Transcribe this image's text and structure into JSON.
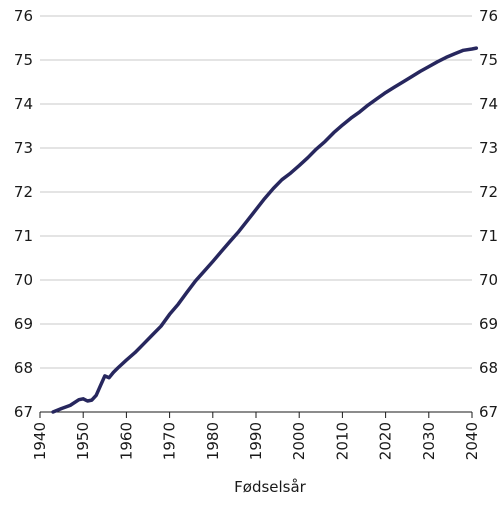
{
  "chart_data": {
    "type": "line",
    "title": "",
    "xlabel": "Fødselsår",
    "ylabel": "",
    "xlim": [
      1940,
      2040
    ],
    "ylim": [
      67,
      76
    ],
    "x_ticks": [
      "1940",
      "1950",
      "1960",
      "1970",
      "1980",
      "1990",
      "2000",
      "2010",
      "2020",
      "2030",
      "2040"
    ],
    "y_ticks": [
      "67",
      "68",
      "69",
      "70",
      "71",
      "72",
      "73",
      "74",
      "75",
      "76"
    ],
    "grid": true,
    "legend": "none",
    "colors": {
      "line": "#27275e",
      "grid": "#c9c9c9",
      "axis": "#1a1a1a"
    },
    "series": [
      {
        "x": [
          1943,
          1945,
          1947,
          1949,
          1950,
          1951,
          1952,
          1953,
          1954,
          1955,
          1956,
          1957,
          1958,
          1960,
          1962,
          1964,
          1966,
          1968,
          1970,
          1972,
          1974,
          1976,
          1978,
          1980,
          1982,
          1984,
          1986,
          1988,
          1990,
          1992,
          1994,
          1996,
          1998,
          2000,
          2002,
          2004,
          2006,
          2008,
          2010,
          2012,
          2014,
          2016,
          2018,
          2020,
          2022,
          2024,
          2026,
          2028,
          2030,
          2032,
          2034,
          2036,
          2038,
          2040,
          2041
        ],
        "values": [
          67.0,
          67.08,
          67.15,
          67.28,
          67.3,
          67.25,
          67.27,
          67.38,
          67.6,
          67.82,
          67.78,
          67.9,
          68.0,
          68.18,
          68.35,
          68.55,
          68.75,
          68.95,
          69.22,
          69.45,
          69.72,
          69.98,
          70.2,
          70.42,
          70.65,
          70.88,
          71.1,
          71.35,
          71.6,
          71.85,
          72.08,
          72.28,
          72.43,
          72.6,
          72.78,
          72.98,
          73.15,
          73.35,
          73.52,
          73.68,
          73.82,
          73.98,
          74.12,
          74.26,
          74.38,
          74.5,
          74.62,
          74.74,
          74.85,
          74.96,
          75.06,
          75.14,
          75.22,
          75.25,
          75.27
        ]
      }
    ]
  }
}
